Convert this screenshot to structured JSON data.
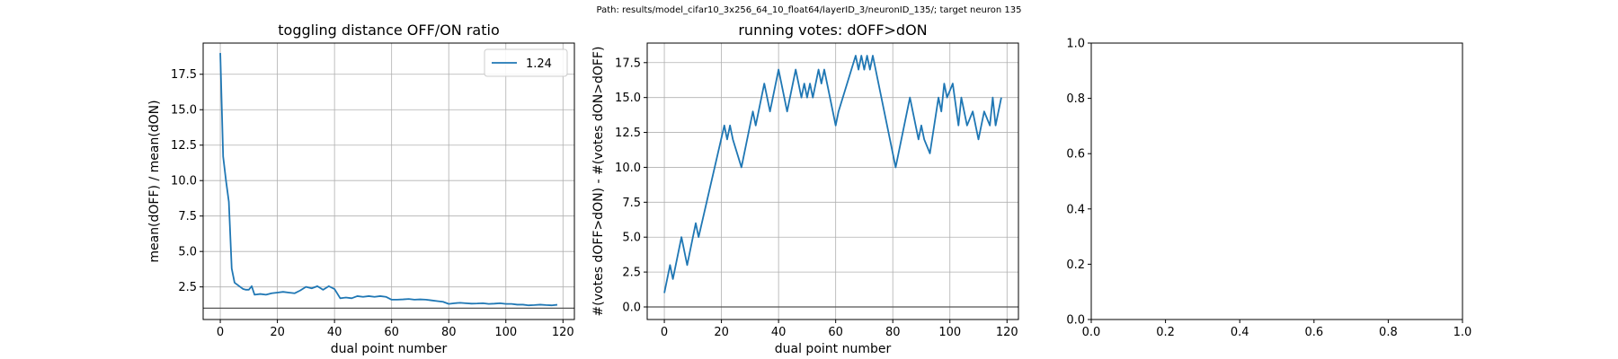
{
  "figure": {
    "suptitle": "Path: results/model_cifar10_3x256_64_10_float64/layerID_3/neuronID_135/; target neuron 135"
  },
  "colors": {
    "series": "#1f77b4",
    "grid": "#b0b0b0",
    "hline": "#555555"
  },
  "chart_data": [
    {
      "type": "line",
      "title": "toggling distance OFF/ON ratio",
      "xlabel": "dual point number",
      "ylabel": "mean(dOFF) / mean(dON)",
      "xlim": [
        -6,
        124
      ],
      "ylim": [
        0.2,
        19.7
      ],
      "xticks": [
        0,
        20,
        40,
        60,
        80,
        100,
        120
      ],
      "yticks": [
        2.5,
        5.0,
        7.5,
        10.0,
        12.5,
        15.0,
        17.5
      ],
      "ytick_labels": [
        "2.5",
        "5.0",
        "7.5",
        "10.0",
        "12.5",
        "15.0",
        "17.5"
      ],
      "grid": true,
      "legend": {
        "position": "upper right",
        "entries": [
          "1.24"
        ]
      },
      "hline": 1.0,
      "series": [
        {
          "name": "1.24",
          "x": [
            0,
            1,
            2,
            3,
            4,
            5,
            6,
            7,
            8,
            9,
            10,
            11,
            12,
            14,
            16,
            18,
            20,
            22,
            24,
            26,
            28,
            30,
            32,
            34,
            36,
            38,
            40,
            42,
            44,
            46,
            48,
            50,
            52,
            54,
            56,
            58,
            60,
            62,
            64,
            66,
            68,
            70,
            72,
            74,
            76,
            78,
            80,
            82,
            84,
            86,
            88,
            90,
            92,
            94,
            96,
            98,
            100,
            102,
            104,
            106,
            108,
            110,
            112,
            114,
            116,
            118
          ],
          "values": [
            19.0,
            11.7,
            10.0,
            8.5,
            3.8,
            2.8,
            2.65,
            2.5,
            2.35,
            2.3,
            2.3,
            2.55,
            1.95,
            2.0,
            1.95,
            2.05,
            2.1,
            2.15,
            2.1,
            2.05,
            2.25,
            2.5,
            2.4,
            2.55,
            2.3,
            2.55,
            2.35,
            1.7,
            1.75,
            1.7,
            1.85,
            1.8,
            1.85,
            1.8,
            1.85,
            1.8,
            1.6,
            1.6,
            1.62,
            1.65,
            1.6,
            1.62,
            1.6,
            1.55,
            1.5,
            1.45,
            1.3,
            1.35,
            1.38,
            1.35,
            1.32,
            1.33,
            1.35,
            1.3,
            1.32,
            1.35,
            1.3,
            1.3,
            1.25,
            1.25,
            1.2,
            1.22,
            1.25,
            1.22,
            1.2,
            1.24
          ]
        }
      ]
    },
    {
      "type": "line",
      "title": "running votes: dOFF>dON",
      "xlabel": "dual point number",
      "ylabel": "#(votes dOFF>dON) - #(votes dON>dOFF)",
      "xlim": [
        -6,
        124
      ],
      "ylim": [
        -0.9,
        18.9
      ],
      "xticks": [
        0,
        20,
        40,
        60,
        80,
        100,
        120
      ],
      "yticks": [
        0.0,
        2.5,
        5.0,
        7.5,
        10.0,
        12.5,
        15.0,
        17.5
      ],
      "ytick_labels": [
        "0.0",
        "2.5",
        "5.0",
        "7.5",
        "10.0",
        "12.5",
        "15.0",
        "17.5"
      ],
      "grid": true,
      "hline": 0.0,
      "series": [
        {
          "x": [
            0,
            2,
            3,
            6,
            8,
            11,
            12,
            21,
            22,
            23,
            24,
            27,
            31,
            32,
            35,
            37,
            40,
            43,
            46,
            47,
            48,
            49,
            50,
            51,
            52,
            54,
            55,
            56,
            59,
            60,
            61,
            67,
            68,
            69,
            70,
            71,
            72,
            73,
            81,
            86,
            89,
            90,
            91,
            93,
            96,
            97,
            98,
            99,
            101,
            103,
            104,
            105,
            106,
            108,
            110,
            112,
            114,
            115,
            116,
            117,
            118
          ],
          "values": [
            1,
            3,
            2,
            5,
            3,
            6,
            5,
            13,
            12,
            13,
            12,
            10,
            14,
            13,
            16,
            14,
            17,
            14,
            17,
            16,
            15,
            16,
            15,
            16,
            15,
            17,
            16,
            17,
            14,
            13,
            14,
            18,
            17,
            18,
            17,
            18,
            17,
            18,
            10,
            15,
            12,
            13,
            12,
            11,
            15,
            14,
            16,
            15,
            16,
            13,
            15,
            14,
            13,
            14,
            12,
            14,
            13,
            15,
            13,
            14,
            15
          ]
        }
      ]
    },
    {
      "type": "line",
      "title": "",
      "xlim": [
        0.0,
        1.0
      ],
      "ylim": [
        0.0,
        1.0
      ],
      "xticks": [
        0.0,
        0.2,
        0.4,
        0.6,
        0.8,
        1.0
      ],
      "yticks": [
        0.0,
        0.2,
        0.4,
        0.6,
        0.8,
        1.0
      ],
      "xtick_labels": [
        "0.0",
        "0.2",
        "0.4",
        "0.6",
        "0.8",
        "1.0"
      ],
      "ytick_labels": [
        "0.0",
        "0.2",
        "0.4",
        "0.6",
        "0.8",
        "1.0"
      ],
      "grid": false,
      "series": []
    }
  ]
}
